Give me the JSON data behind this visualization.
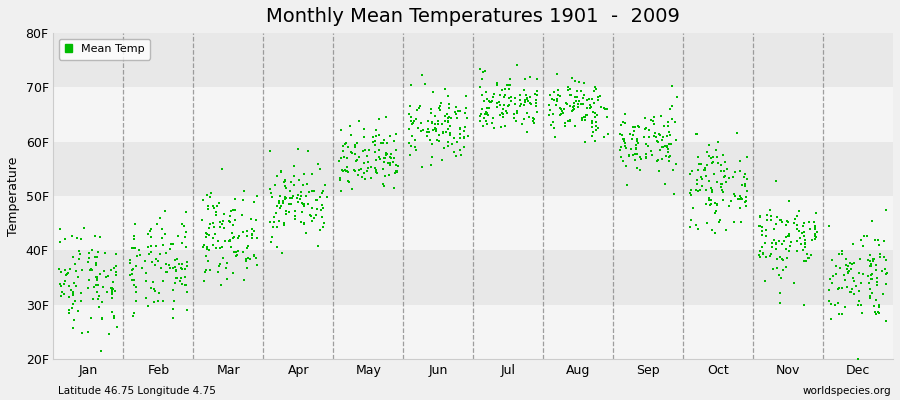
{
  "title": "Monthly Mean Temperatures 1901  -  2009",
  "ylabel": "Temperature",
  "xlabel_months": [
    "Jan",
    "Feb",
    "Mar",
    "Apr",
    "May",
    "Jun",
    "Jul",
    "Aug",
    "Sep",
    "Oct",
    "Nov",
    "Dec"
  ],
  "ytick_labels": [
    "20F",
    "30F",
    "40F",
    "50F",
    "60F",
    "70F",
    "80F"
  ],
  "ytick_values": [
    20,
    30,
    40,
    50,
    60,
    70,
    80
  ],
  "ylim": [
    20,
    80
  ],
  "xlim": [
    0,
    12
  ],
  "dot_color": "#00bb00",
  "bg_color": "#f0f0f0",
  "band_light": "#f5f5f5",
  "band_dark": "#e8e8e8",
  "legend_label": "Mean Temp",
  "bottom_left": "Latitude 46.75 Longitude 4.75",
  "bottom_right": "worldspecies.org",
  "title_fontsize": 14,
  "axis_fontsize": 9,
  "tick_fontsize": 9,
  "years": 109,
  "monthly_means_C": [
    1.5,
    2.5,
    6.0,
    9.5,
    13.5,
    17.0,
    19.5,
    19.0,
    15.5,
    11.0,
    5.5,
    2.0
  ],
  "monthly_stds_C": [
    2.8,
    2.5,
    2.2,
    2.0,
    1.8,
    1.8,
    1.5,
    1.5,
    1.8,
    2.0,
    2.2,
    2.5
  ],
  "seed": 42
}
